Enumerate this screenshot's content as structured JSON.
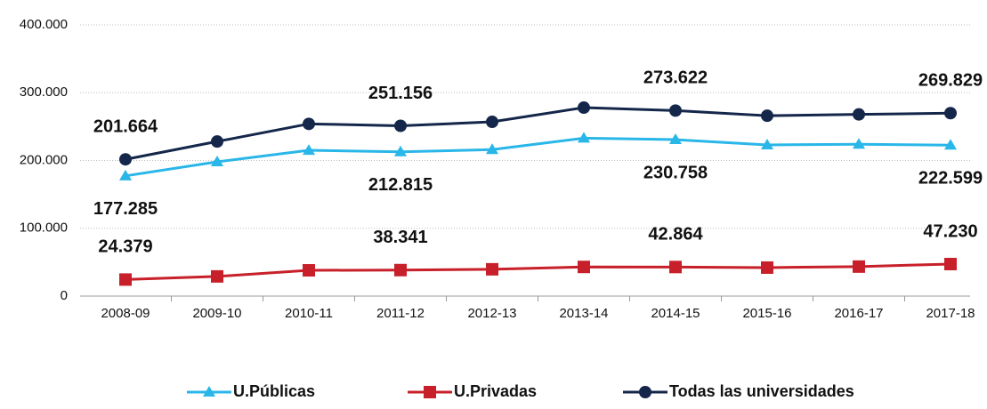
{
  "chart_data": {
    "type": "line",
    "categories": [
      "2008-09",
      "2009-10",
      "2010-11",
      "2011-12",
      "2012-13",
      "2013-14",
      "2014-15",
      "2015-16",
      "2016-17",
      "2017-18"
    ],
    "ylim": [
      0,
      400000
    ],
    "yticks": [
      0,
      {
        "value": 100000,
        "label": "100.000"
      },
      {
        "value": 200000,
        "label": "200.000"
      },
      {
        "value": 300000,
        "label": "300.000"
      },
      {
        "value": 400000,
        "label": "400.000"
      }
    ],
    "grid": true,
    "legend": "bottom",
    "series": [
      {
        "name": "U.Públicas",
        "color": "#29b6e8",
        "marker": "triangle",
        "label_side": "below",
        "values": [
          177285,
          198000,
          215000,
          212815,
          216000,
          233000,
          230758,
          223000,
          224000,
          222599
        ],
        "value_labels": [
          "177.285",
          null,
          null,
          "212.815",
          null,
          null,
          "230.758",
          null,
          null,
          "222.599"
        ]
      },
      {
        "name": "U.Privadas",
        "color": "#c8202a",
        "marker": "square",
        "label_side": "above",
        "values": [
          24379,
          29000,
          38000,
          38341,
          39500,
          43000,
          42864,
          42000,
          43500,
          47230
        ],
        "value_labels": [
          "24.379",
          null,
          null,
          "38.341",
          null,
          null,
          "42.864",
          null,
          null,
          "47.230"
        ]
      },
      {
        "name": "Todas las universidades",
        "color": "#14264a",
        "marker": "circle",
        "label_side": "above",
        "values": [
          201664,
          228000,
          254000,
          251156,
          257000,
          278000,
          273622,
          266000,
          268000,
          269829
        ],
        "value_labels": [
          "201.664",
          null,
          null,
          "251.156",
          null,
          null,
          "273.622",
          null,
          null,
          "269.829"
        ]
      }
    ]
  }
}
